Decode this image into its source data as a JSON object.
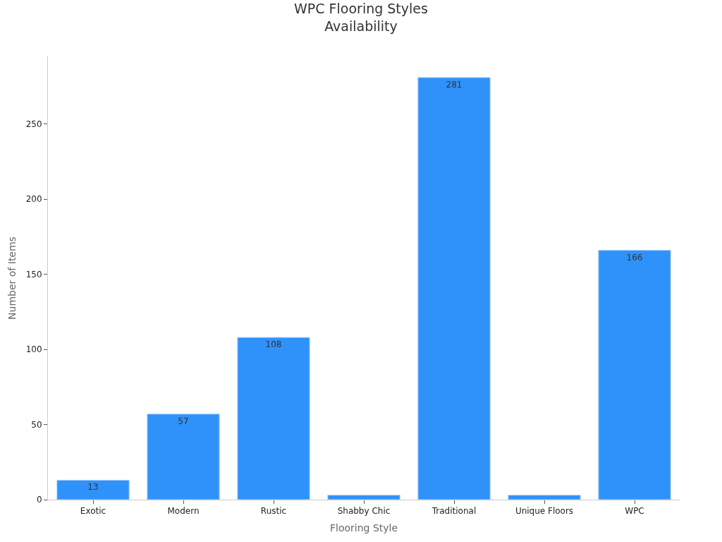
{
  "chart_data": {
    "type": "bar",
    "title": "WPC Flooring Styles\nAvailability",
    "xlabel": "Flooring Style",
    "ylabel": "Number of Items",
    "categories": [
      "Exotic",
      "Modern",
      "Rustic",
      "Shabby Chic",
      "Traditional",
      "Unique Floors",
      "WPC"
    ],
    "values": [
      13,
      57,
      108,
      3,
      281,
      3,
      166
    ],
    "value_labels": [
      "13",
      "57",
      "108",
      null,
      "281",
      null,
      "166"
    ],
    "color": "#2f92fa",
    "ylim": [
      0,
      295
    ],
    "yticks": [
      0,
      50,
      100,
      150,
      200,
      250
    ],
    "grid": false,
    "legend": false
  }
}
